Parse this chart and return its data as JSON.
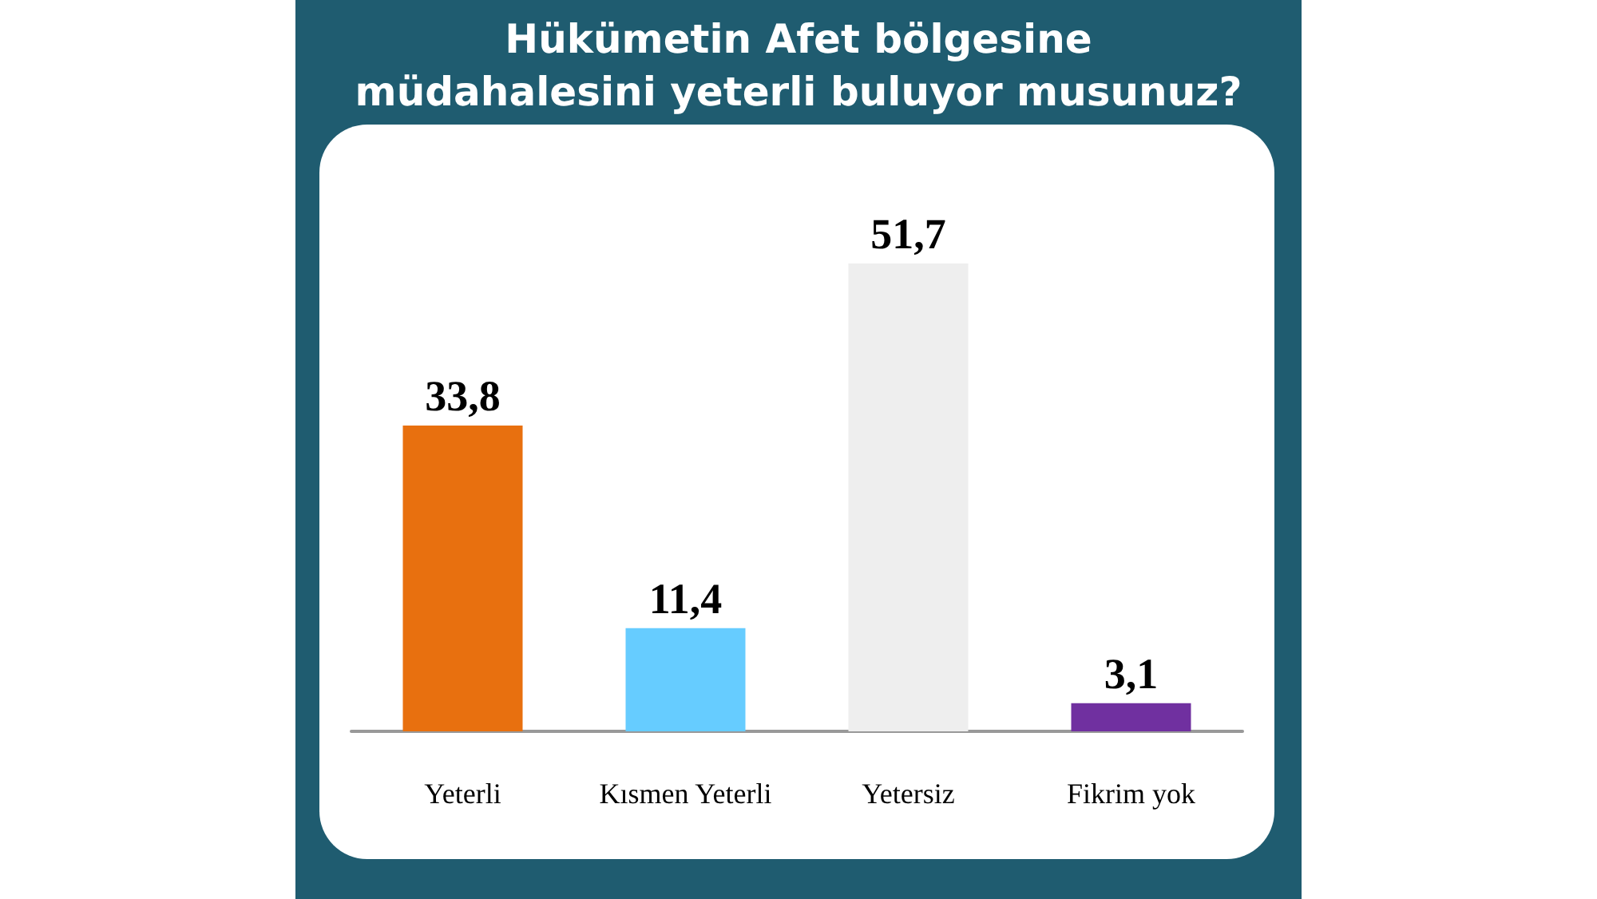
{
  "chart_data": {
    "type": "bar",
    "title": "Hükümetin Afet bölgesine\nmüdahalesini yeterli buluyor musunuz?",
    "categories": [
      "Yeterli",
      "Kısmen Yeterli",
      "Yetersiz",
      "Fikrim yok"
    ],
    "values": [
      33.8,
      11.4,
      51.7,
      3.1
    ],
    "colors": [
      "#e8700f",
      "#66ccff",
      "#eeeeee",
      "#7030a0"
    ],
    "value_labels": [
      "33,8",
      "11,4",
      "51,7",
      "3,1"
    ]
  }
}
